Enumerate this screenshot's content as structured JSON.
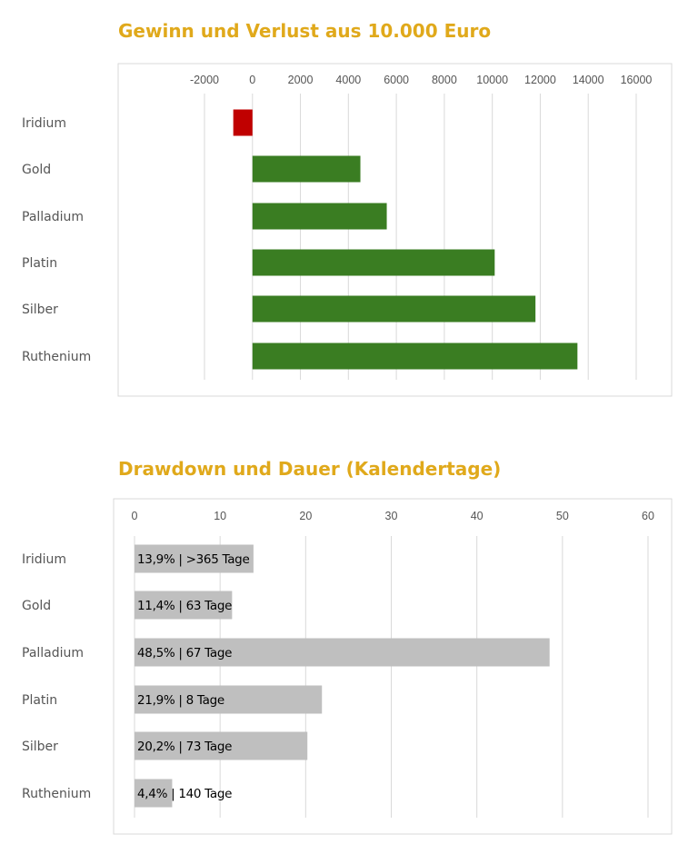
{
  "chart_data": [
    {
      "type": "bar",
      "orientation": "horizontal",
      "title": "Gewinn und Verlust aus 10.000 Euro",
      "categories": [
        "Iridium",
        "Gold",
        "Palladium",
        "Platin",
        "Silber",
        "Ruthenium"
      ],
      "values": [
        -800,
        4500,
        5600,
        10100,
        11800,
        13550
      ],
      "xlim": [
        -2000,
        16000
      ],
      "ticks": [
        -2000,
        0,
        2000,
        4000,
        6000,
        8000,
        10000,
        12000,
        14000,
        16000
      ],
      "grid": true,
      "colors": {
        "positive": "#3a7d22",
        "negative": "#c00000"
      }
    },
    {
      "type": "bar",
      "orientation": "horizontal",
      "title": "Drawdown und Dauer (Kalendertage)",
      "categories": [
        "Iridium",
        "Gold",
        "Palladium",
        "Platin",
        "Silber",
        "Ruthenium"
      ],
      "values": [
        13.9,
        11.4,
        48.5,
        21.9,
        20.2,
        4.4
      ],
      "data_labels": [
        "13,9% | >365 Tage",
        "11,4% | 63 Tage",
        "48,5% | 67 Tage",
        "21,9% | 8 Tage",
        "20,2% | 73 Tage",
        "4,4% | 140 Tage"
      ],
      "xlim": [
        0,
        60
      ],
      "ticks": [
        0,
        10,
        20,
        30,
        40,
        50,
        60
      ],
      "grid": true,
      "colors": {
        "bar": "#bfbfbf"
      }
    }
  ]
}
